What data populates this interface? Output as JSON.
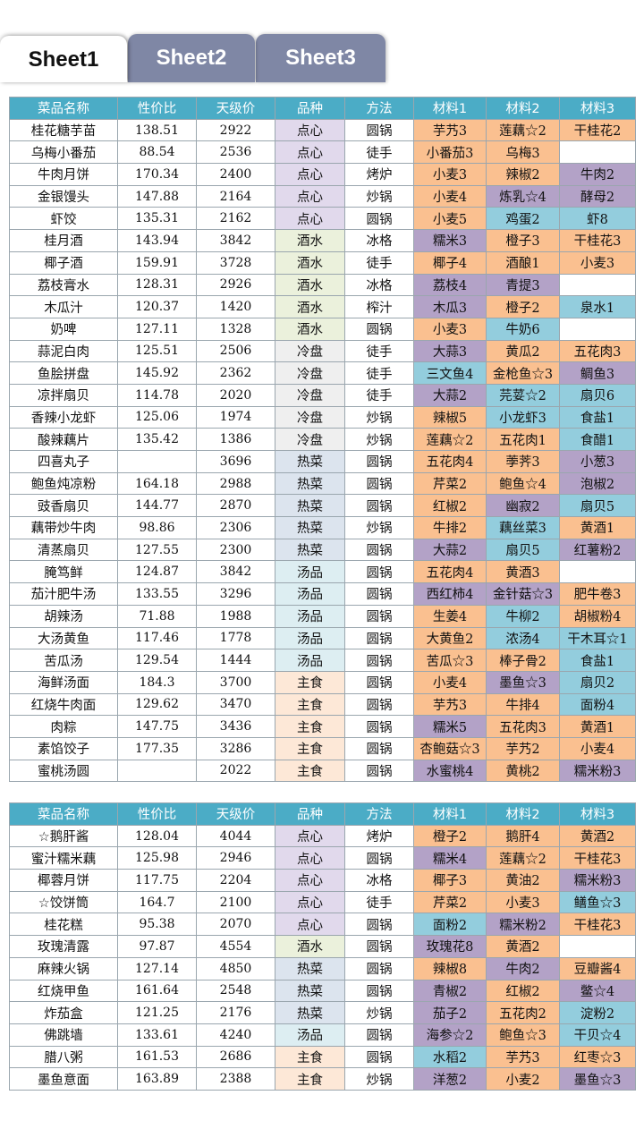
{
  "tabs": [
    {
      "label": "Sheet1",
      "active": true
    },
    {
      "label": "Sheet2",
      "active": false
    },
    {
      "label": "Sheet3",
      "active": false
    }
  ],
  "headers": [
    "菜品名称",
    "性价比",
    "天级价",
    "品种",
    "方法",
    "材料1",
    "材料2",
    "材料3"
  ],
  "colors": {
    "header": "#4bacc6",
    "orange": "#fac090",
    "purple": "#b3a2c7",
    "blue": "#93cddd",
    "tab_inactive": "#7f87a5"
  },
  "category_colors": {
    "点心": "dessert",
    "酒水": "drink",
    "冷盘": "cold",
    "热菜": "hot",
    "汤品": "soup",
    "主食": "staple"
  },
  "table1": [
    [
      "桂花糖芋苗",
      "138.51",
      "2922",
      "点心",
      "圆锅",
      "芋艿3",
      "o",
      "莲藕☆2",
      "o",
      "干桂花2",
      "o"
    ],
    [
      "乌梅小番茄",
      "88.54",
      "2536",
      "点心",
      "徒手",
      "小番茄3",
      "o",
      "乌梅3",
      "o",
      "",
      "w"
    ],
    [
      "牛肉月饼",
      "170.34",
      "2400",
      "点心",
      "烤炉",
      "小麦3",
      "o",
      "辣椒2",
      "o",
      "牛肉2",
      "p"
    ],
    [
      "金银馒头",
      "147.88",
      "2164",
      "点心",
      "炒锅",
      "小麦4",
      "o",
      "炼乳☆4",
      "p",
      "酵母2",
      "p"
    ],
    [
      "虾饺",
      "135.31",
      "2162",
      "点心",
      "圆锅",
      "小麦5",
      "o",
      "鸡蛋2",
      "b",
      "虾8",
      "b"
    ],
    [
      "桂月酒",
      "143.94",
      "3842",
      "酒水",
      "冰格",
      "糯米3",
      "p",
      "橙子3",
      "o",
      "干桂花3",
      "o"
    ],
    [
      "椰子酒",
      "159.91",
      "3728",
      "酒水",
      "徒手",
      "椰子4",
      "o",
      "酒酿1",
      "o",
      "小麦3",
      "o"
    ],
    [
      "荔枝膏水",
      "128.31",
      "2926",
      "酒水",
      "冰格",
      "荔枝4",
      "p",
      "青提3",
      "p",
      "",
      "w"
    ],
    [
      "木瓜汁",
      "120.37",
      "1420",
      "酒水",
      "榨汁",
      "木瓜3",
      "p",
      "橙子2",
      "o",
      "泉水1",
      "b"
    ],
    [
      "奶啤",
      "127.11",
      "1328",
      "酒水",
      "圆锅",
      "小麦3",
      "o",
      "牛奶6",
      "b",
      "",
      "w"
    ],
    [
      "蒜泥白肉",
      "125.51",
      "2506",
      "冷盘",
      "徒手",
      "大蒜3",
      "p",
      "黄瓜2",
      "o",
      "五花肉3",
      "o"
    ],
    [
      "鱼脍拼盘",
      "145.92",
      "2362",
      "冷盘",
      "徒手",
      "三文鱼4",
      "b",
      "金枪鱼☆3",
      "o",
      "鲷鱼3",
      "p"
    ],
    [
      "凉拌扇贝",
      "114.78",
      "2020",
      "冷盘",
      "徒手",
      "大蒜2",
      "p",
      "芫荽☆2",
      "b",
      "扇贝6",
      "b"
    ],
    [
      "香辣小龙虾",
      "125.06",
      "1974",
      "冷盘",
      "炒锅",
      "辣椒5",
      "o",
      "小龙虾3",
      "b",
      "食盐1",
      "b"
    ],
    [
      "酸辣藕片",
      "135.42",
      "1386",
      "冷盘",
      "炒锅",
      "莲藕☆2",
      "o",
      "五花肉1",
      "o",
      "食醋1",
      "b"
    ],
    [
      "四喜丸子",
      "",
      "3696",
      "热菜",
      "圆锅",
      "五花肉4",
      "o",
      "荸荠3",
      "o",
      "小葱3",
      "p"
    ],
    [
      "鲍鱼炖凉粉",
      "164.18",
      "2988",
      "热菜",
      "圆锅",
      "芹菜2",
      "o",
      "鲍鱼☆4",
      "o",
      "泡椒2",
      "p"
    ],
    [
      "豉香扇贝",
      "144.77",
      "2870",
      "热菜",
      "圆锅",
      "红椒2",
      "o",
      "幽寂2",
      "p",
      "扇贝5",
      "b"
    ],
    [
      "藕带炒牛肉",
      "98.86",
      "2306",
      "热菜",
      "炒锅",
      "牛排2",
      "o",
      "藕丝菜3",
      "b",
      "黄酒1",
      "o"
    ],
    [
      "清蒸扇贝",
      "127.55",
      "2300",
      "热菜",
      "圆锅",
      "大蒜2",
      "p",
      "扇贝5",
      "b",
      "红薯粉2",
      "p"
    ],
    [
      "腌笃鲜",
      "124.87",
      "3842",
      "汤品",
      "圆锅",
      "五花肉4",
      "o",
      "黄酒3",
      "o",
      "",
      "w"
    ],
    [
      "茄汁肥牛汤",
      "133.55",
      "3296",
      "汤品",
      "圆锅",
      "西红柿4",
      "p",
      "金针菇☆3",
      "p",
      "肥牛卷3",
      "o"
    ],
    [
      "胡辣汤",
      "71.88",
      "1988",
      "汤品",
      "圆锅",
      "生姜4",
      "o",
      "牛柳2",
      "b",
      "胡椒粉4",
      "o"
    ],
    [
      "大汤黄鱼",
      "117.46",
      "1778",
      "汤品",
      "圆锅",
      "大黄鱼2",
      "o",
      "浓汤4",
      "b",
      "干木耳☆1",
      "b"
    ],
    [
      "苦瓜汤",
      "129.54",
      "1444",
      "汤品",
      "圆锅",
      "苦瓜☆3",
      "o",
      "棒子骨2",
      "o",
      "食盐1",
      "b"
    ],
    [
      "海鲜汤面",
      "184.3",
      "3700",
      "主食",
      "圆锅",
      "小麦4",
      "o",
      "墨鱼☆3",
      "p",
      "扇贝2",
      "b"
    ],
    [
      "红烧牛肉面",
      "129.62",
      "3470",
      "主食",
      "圆锅",
      "芋艿3",
      "o",
      "牛排4",
      "o",
      "面粉4",
      "b"
    ],
    [
      "肉粽",
      "147.75",
      "3436",
      "主食",
      "圆锅",
      "糯米5",
      "p",
      "五花肉3",
      "o",
      "黄酒1",
      "o"
    ],
    [
      "素馅饺子",
      "177.35",
      "3286",
      "主食",
      "圆锅",
      "杏鲍菇☆3",
      "o",
      "芋艿2",
      "o",
      "小麦4",
      "o"
    ],
    [
      "蜜桃汤圆",
      "",
      "2022",
      "主食",
      "圆锅",
      "水蜜桃4",
      "p",
      "黄桃2",
      "o",
      "糯米粉3",
      "p"
    ]
  ],
  "table2": [
    [
      "☆鹅肝酱",
      "128.04",
      "4044",
      "点心",
      "烤炉",
      "橙子2",
      "o",
      "鹅肝4",
      "o",
      "黄酒2",
      "o"
    ],
    [
      "蜜汁糯米藕",
      "125.98",
      "2946",
      "点心",
      "圆锅",
      "糯米4",
      "p",
      "莲藕☆2",
      "o",
      "干桂花3",
      "o"
    ],
    [
      "椰蓉月饼",
      "117.75",
      "2204",
      "点心",
      "冰格",
      "椰子3",
      "o",
      "黄油2",
      "o",
      "糯米粉3",
      "p"
    ],
    [
      "☆饺饼筒",
      "164.7",
      "2100",
      "点心",
      "徒手",
      "芹菜2",
      "o",
      "小麦3",
      "o",
      "鳝鱼☆3",
      "b"
    ],
    [
      "桂花糕",
      "95.38",
      "2070",
      "点心",
      "圆锅",
      "面粉2",
      "b",
      "糯米粉2",
      "p",
      "干桂花3",
      "o"
    ],
    [
      "玫瑰清露",
      "97.87",
      "4554",
      "酒水",
      "圆锅",
      "玫瑰花8",
      "p",
      "黄酒2",
      "o",
      "",
      "w"
    ],
    [
      "麻辣火锅",
      "127.14",
      "4850",
      "热菜",
      "圆锅",
      "辣椒8",
      "o",
      "牛肉2",
      "p",
      "豆瓣酱4",
      "o"
    ],
    [
      "红烧甲鱼",
      "161.64",
      "2548",
      "热菜",
      "圆锅",
      "青椒2",
      "p",
      "红椒2",
      "o",
      "鳖☆4",
      "p"
    ],
    [
      "炸茄盒",
      "121.25",
      "2176",
      "热菜",
      "炒锅",
      "茄子2",
      "p",
      "五花肉2",
      "o",
      "淀粉2",
      "b"
    ],
    [
      "佛跳墙",
      "133.61",
      "4240",
      "汤品",
      "圆锅",
      "海参☆2",
      "p",
      "鲍鱼☆3",
      "o",
      "干贝☆4",
      "b"
    ],
    [
      "腊八粥",
      "161.53",
      "2686",
      "主食",
      "圆锅",
      "水稻2",
      "b",
      "芋艿3",
      "o",
      "红枣☆3",
      "o"
    ],
    [
      "墨鱼意面",
      "163.89",
      "2388",
      "主食",
      "炒锅",
      "洋葱2",
      "p",
      "小麦2",
      "o",
      "墨鱼☆3",
      "p"
    ]
  ]
}
